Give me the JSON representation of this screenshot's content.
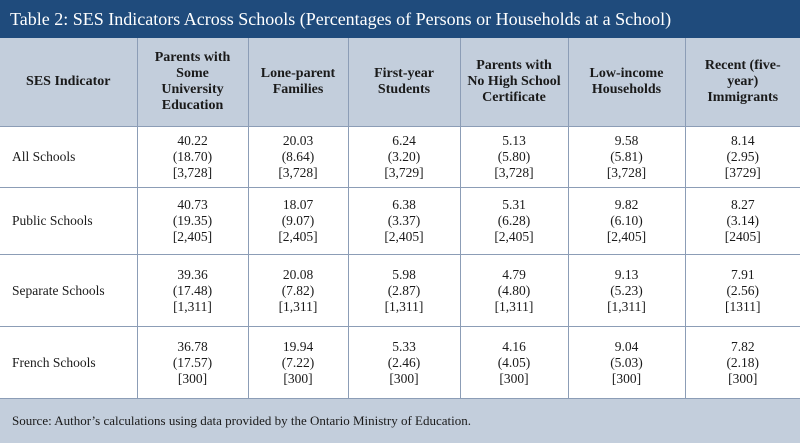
{
  "title": "Table 2: SES Indicators Across Schools (Percentages of Persons or Households at a School)",
  "table": {
    "header": [
      "SES Indicator",
      "Parents with Some University Education",
      "Lone-parent Families",
      "First-year Students",
      "Parents with No High School Certificate",
      "Low-income Households",
      "Recent (five-year) Immigrants"
    ],
    "rows": [
      {
        "label": "All Schools",
        "cells": [
          [
            "40.22",
            "(18.70)",
            "[3,728]"
          ],
          [
            "20.03",
            "(8.64)",
            "[3,728]"
          ],
          [
            "6.24",
            "(3.20)",
            "[3,729]"
          ],
          [
            "5.13",
            "(5.80)",
            "[3,728]"
          ],
          [
            "9.58",
            "(5.81)",
            "[3,728]"
          ],
          [
            "8.14",
            "(2.95)",
            "[3729]"
          ]
        ]
      },
      {
        "label": "Public Schools",
        "cells": [
          [
            "40.73",
            "(19.35)",
            "[2,405]"
          ],
          [
            "18.07",
            "(9.07)",
            "[2,405]"
          ],
          [
            "6.38",
            "(3.37)",
            "[2,405]"
          ],
          [
            "5.31",
            "(6.28)",
            "[2,405]"
          ],
          [
            "9.82",
            "(6.10)",
            "[2,405]"
          ],
          [
            "8.27",
            "(3.14)",
            "[2405]"
          ]
        ]
      },
      {
        "label": "Separate Schools",
        "cells": [
          [
            "39.36",
            "(17.48)",
            "[1,311]"
          ],
          [
            "20.08",
            "(7.82)",
            "[1,311]"
          ],
          [
            "5.98",
            "(2.87)",
            "[1,311]"
          ],
          [
            "4.79",
            "(4.80)",
            "[1,311]"
          ],
          [
            "9.13",
            "(5.23)",
            "[1,311]"
          ],
          [
            "7.91",
            "(2.56)",
            "[1311]"
          ]
        ]
      },
      {
        "label": "French Schools",
        "cells": [
          [
            "36.78",
            "(17.57)",
            "[300]"
          ],
          [
            "19.94",
            "(7.22)",
            "[300]"
          ],
          [
            "5.33",
            "(2.46)",
            "[300]"
          ],
          [
            "4.16",
            "(4.05)",
            "[300]"
          ],
          [
            "9.04",
            "(5.03)",
            "[300]"
          ],
          [
            "7.82",
            "(2.18)",
            "[300]"
          ]
        ]
      }
    ]
  },
  "source": "Source: Author’s calculations using data provided by the Ontario Ministry of Education."
}
